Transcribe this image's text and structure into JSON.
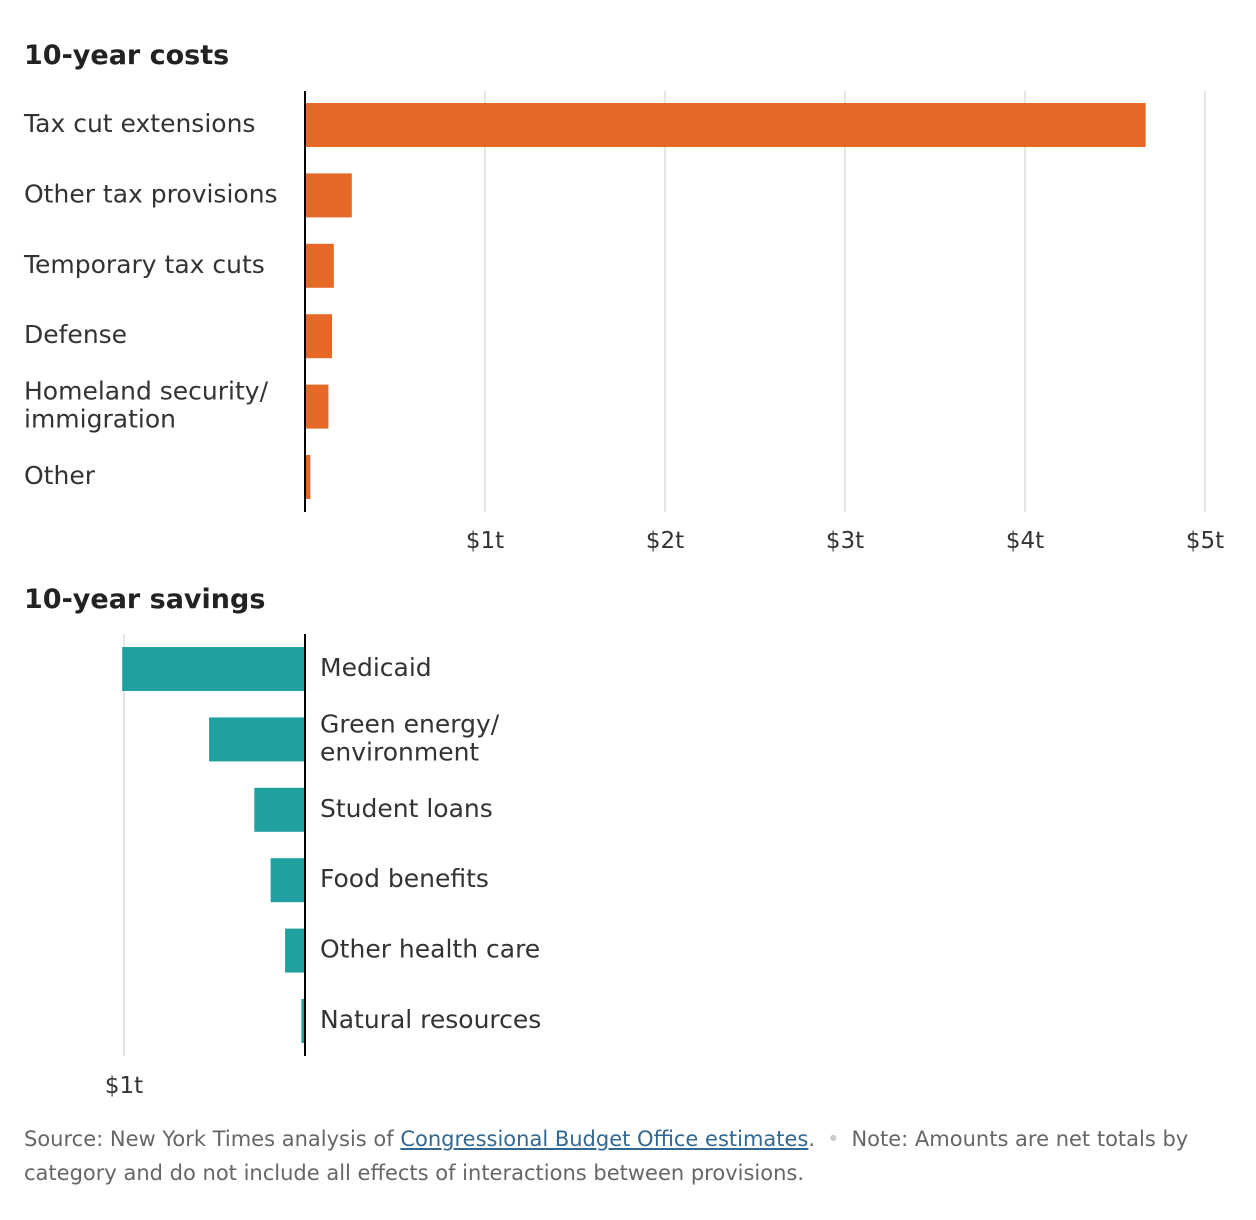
{
  "costs": {
    "title": "10-year costs",
    "tick_labels": [
      "$1t",
      "$2t",
      "$3t",
      "$4t",
      "$5t"
    ]
  },
  "savings": {
    "title": "10-year savings",
    "tick_labels": [
      "$1t"
    ]
  },
  "colors": {
    "costs_bar": "#e66826",
    "savings_bar": "#20a09f",
    "grid": "#cccccc"
  },
  "chart_data": [
    {
      "type": "bar",
      "orientation": "horizontal",
      "title": "10-year costs",
      "categories": [
        "Tax cut extensions",
        "Other tax provisions",
        "Temporary tax cuts",
        "Defense",
        "Homeland security/\nimmigration",
        "Other"
      ],
      "values": [
        4.67,
        0.26,
        0.16,
        0.15,
        0.13,
        0.03
      ],
      "unit": "trillion dollars",
      "xlim": [
        0,
        5
      ],
      "ticks": [
        1,
        2,
        3,
        4,
        5
      ],
      "grid": true
    },
    {
      "type": "bar",
      "orientation": "horizontal",
      "title": "10-year savings",
      "categories": [
        "Medicaid",
        "Green energy/\nenvironment",
        "Student loans",
        "Food benefits",
        "Other health care",
        "Natural resources"
      ],
      "values": [
        1.01,
        0.53,
        0.28,
        0.19,
        0.11,
        0.02
      ],
      "unit": "trillion dollars",
      "direction": "leftward",
      "ticks": [
        1
      ],
      "grid": true
    }
  ],
  "footnote": {
    "source_prefix": "Source: New York Times analysis of ",
    "source_link": "Congressional Budget Office estimates",
    "source_suffix": ".",
    "note": "Note: Amounts are net totals by category and do not include all effects of interactions between provisions."
  }
}
